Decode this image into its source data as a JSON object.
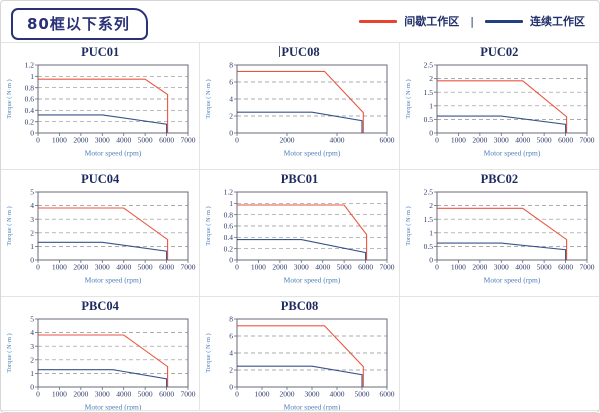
{
  "page": {
    "title": "80框以下系列",
    "legend": {
      "intermittent_label": "间歇工作区",
      "separator": "|",
      "continuous_label": "连续工作区"
    }
  },
  "colors": {
    "intermittent": "#e8432c",
    "continuous": "#23407e",
    "title_navy": "#1c2a5e",
    "tick_navy": "#2c3a6b",
    "axis_label_blue": "#4a7ebb",
    "plot_border": "#6a6a78",
    "grid_dash": "#909090",
    "cell_border": "#e4e4e4"
  },
  "chart_data": [
    {
      "type": "line",
      "title": "PUC01",
      "cursor_before_title": false,
      "xlabel": "Motor speed (rpm)",
      "ylabel": "Torque ( N·m )",
      "xlim": [
        0,
        7000
      ],
      "xticks": [
        0,
        1000,
        2000,
        3000,
        4000,
        5000,
        6000,
        7000
      ],
      "ylim": [
        0,
        1.2
      ],
      "yticks": [
        0,
        0.2,
        0.4,
        0.6,
        0.8,
        1,
        1.2
      ],
      "grid": "dashed-horizontal",
      "legend_position": "none",
      "series": [
        {
          "name": "间歇工作区",
          "color_key": "intermittent",
          "points": [
            [
              0,
              0.95
            ],
            [
              5000,
              0.95
            ],
            [
              6050,
              0.68
            ],
            [
              6050,
              0
            ]
          ]
        },
        {
          "name": "连续工作区",
          "color_key": "continuous",
          "points": [
            [
              0,
              0.32
            ],
            [
              3000,
              0.32
            ],
            [
              6000,
              0.155
            ],
            [
              6000,
              0
            ]
          ]
        }
      ]
    },
    {
      "type": "line",
      "title": "PUC08",
      "cursor_before_title": true,
      "xlabel": "Motor speed (rpm)",
      "ylabel": "Torque ( N·m )",
      "xlim": [
        0,
        6000
      ],
      "xticks": [
        0,
        2000,
        4000,
        6000
      ],
      "ylim": [
        0,
        8
      ],
      "yticks": [
        0,
        2,
        4,
        6,
        8
      ],
      "grid": "dashed-horizontal",
      "legend_position": "none",
      "series": [
        {
          "name": "间歇工作区",
          "color_key": "intermittent",
          "points": [
            [
              0,
              7.25
            ],
            [
              3500,
              7.25
            ],
            [
              5050,
              2.4
            ],
            [
              5050,
              0
            ]
          ]
        },
        {
          "name": "连续工作区",
          "color_key": "continuous",
          "points": [
            [
              0,
              2.45
            ],
            [
              3000,
              2.45
            ],
            [
              5000,
              1.45
            ],
            [
              5000,
              0
            ]
          ]
        }
      ]
    },
    {
      "type": "line",
      "title": "PUC02",
      "cursor_before_title": false,
      "xlabel": "Motor speed (rpm)",
      "ylabel": "Torque ( N·m )",
      "xlim": [
        0,
        7000
      ],
      "xticks": [
        0,
        1000,
        2000,
        3000,
        4000,
        5000,
        6000,
        7000
      ],
      "ylim": [
        0,
        2.5
      ],
      "yticks": [
        0,
        0.5,
        1,
        1.5,
        2,
        2.5
      ],
      "grid": "dashed-horizontal",
      "legend_position": "none",
      "series": [
        {
          "name": "间歇工作区",
          "color_key": "intermittent",
          "points": [
            [
              0,
              1.92
            ],
            [
              4000,
              1.92
            ],
            [
              6050,
              0.6
            ],
            [
              6050,
              0
            ]
          ]
        },
        {
          "name": "连续工作区",
          "color_key": "continuous",
          "points": [
            [
              0,
              0.62
            ],
            [
              3000,
              0.62
            ],
            [
              6000,
              0.32
            ],
            [
              6000,
              0
            ]
          ]
        }
      ]
    },
    {
      "type": "line",
      "title": "PUC04",
      "cursor_before_title": false,
      "xlabel": "Motor speed (rpm)",
      "ylabel": "Torque ( N·m )",
      "xlim": [
        0,
        7000
      ],
      "xticks": [
        0,
        1000,
        2000,
        3000,
        4000,
        5000,
        6000,
        7000
      ],
      "ylim": [
        0,
        5
      ],
      "yticks": [
        0,
        1,
        2,
        3,
        4,
        5
      ],
      "grid": "dashed-horizontal",
      "legend_position": "none",
      "series": [
        {
          "name": "间歇工作区",
          "color_key": "intermittent",
          "points": [
            [
              0,
              3.82
            ],
            [
              4000,
              3.82
            ],
            [
              6050,
              1.5
            ],
            [
              6050,
              0
            ]
          ]
        },
        {
          "name": "连续工作区",
          "color_key": "continuous",
          "points": [
            [
              0,
              1.3
            ],
            [
              3000,
              1.3
            ],
            [
              6000,
              0.65
            ],
            [
              6000,
              0
            ]
          ]
        }
      ]
    },
    {
      "type": "line",
      "title": "PBC01",
      "cursor_before_title": false,
      "xlabel": "Motor speed (rpm)",
      "ylabel": "Torque ( N·m )",
      "xlim": [
        0,
        7000
      ],
      "xticks": [
        0,
        1000,
        2000,
        3000,
        4000,
        5000,
        6000,
        7000
      ],
      "ylim": [
        0,
        1.2
      ],
      "yticks": [
        0,
        0.2,
        0.4,
        0.6,
        0.8,
        1,
        1.2
      ],
      "grid": "dashed-horizontal",
      "legend_position": "none",
      "series": [
        {
          "name": "间歇工作区",
          "color_key": "intermittent",
          "points": [
            [
              0,
              0.97
            ],
            [
              5000,
              0.97
            ],
            [
              6050,
              0.45
            ],
            [
              6050,
              0
            ]
          ]
        },
        {
          "name": "连续工作区",
          "color_key": "continuous",
          "points": [
            [
              0,
              0.36
            ],
            [
              3000,
              0.36
            ],
            [
              6000,
              0.13
            ],
            [
              6000,
              0
            ]
          ]
        }
      ]
    },
    {
      "type": "line",
      "title": "PBC02",
      "cursor_before_title": false,
      "xlabel": "Motor speed (rpm)",
      "ylabel": "Torque ( N·m )",
      "xlim": [
        0,
        7000
      ],
      "xticks": [
        0,
        1000,
        2000,
        3000,
        4000,
        5000,
        6000,
        7000
      ],
      "ylim": [
        0,
        2.5
      ],
      "yticks": [
        0,
        0.5,
        1,
        1.5,
        2,
        2.5
      ],
      "grid": "dashed-horizontal",
      "legend_position": "none",
      "series": [
        {
          "name": "间歇工作区",
          "color_key": "intermittent",
          "points": [
            [
              0,
              1.9
            ],
            [
              4000,
              1.9
            ],
            [
              6050,
              0.75
            ],
            [
              6050,
              0
            ]
          ]
        },
        {
          "name": "连续工作区",
          "color_key": "continuous",
          "points": [
            [
              0,
              0.62
            ],
            [
              3000,
              0.62
            ],
            [
              6000,
              0.38
            ],
            [
              6000,
              0
            ]
          ]
        }
      ]
    },
    {
      "type": "line",
      "title": "PBC04",
      "cursor_before_title": false,
      "xlabel": "Motor speed (rpm)",
      "ylabel": "Torque ( N·m )",
      "xlim": [
        0,
        7000
      ],
      "xticks": [
        0,
        1000,
        2000,
        3000,
        4000,
        5000,
        6000,
        7000
      ],
      "ylim": [
        0,
        5
      ],
      "yticks": [
        0,
        1,
        2,
        3,
        4,
        5
      ],
      "grid": "dashed-horizontal",
      "legend_position": "none",
      "series": [
        {
          "name": "间歇工作区",
          "color_key": "intermittent",
          "points": [
            [
              0,
              3.82
            ],
            [
              4000,
              3.82
            ],
            [
              6050,
              1.5
            ],
            [
              6050,
              0
            ]
          ]
        },
        {
          "name": "连续工作区",
          "color_key": "continuous",
          "points": [
            [
              0,
              1.27
            ],
            [
              3500,
              1.27
            ],
            [
              6000,
              0.6
            ],
            [
              6000,
              0
            ]
          ]
        }
      ]
    },
    {
      "type": "line",
      "title": "PBC08",
      "cursor_before_title": false,
      "xlabel": "Motor speed (rpm)",
      "ylabel": "Torque ( N·m )",
      "xlim": [
        0,
        6000
      ],
      "xticks": [
        0,
        1000,
        2000,
        3000,
        4000,
        5000,
        6000
      ],
      "ylim": [
        0,
        8
      ],
      "yticks": [
        0,
        2,
        4,
        6,
        8
      ],
      "grid": "dashed-horizontal",
      "legend_position": "none",
      "series": [
        {
          "name": "间歇工作区",
          "color_key": "intermittent",
          "points": [
            [
              0,
              7.2
            ],
            [
              3500,
              7.2
            ],
            [
              5050,
              2.4
            ],
            [
              5050,
              0
            ]
          ]
        },
        {
          "name": "连续工作区",
          "color_key": "continuous",
          "points": [
            [
              0,
              2.45
            ],
            [
              3000,
              2.45
            ],
            [
              5000,
              1.45
            ],
            [
              5000,
              0
            ]
          ]
        }
      ]
    }
  ]
}
